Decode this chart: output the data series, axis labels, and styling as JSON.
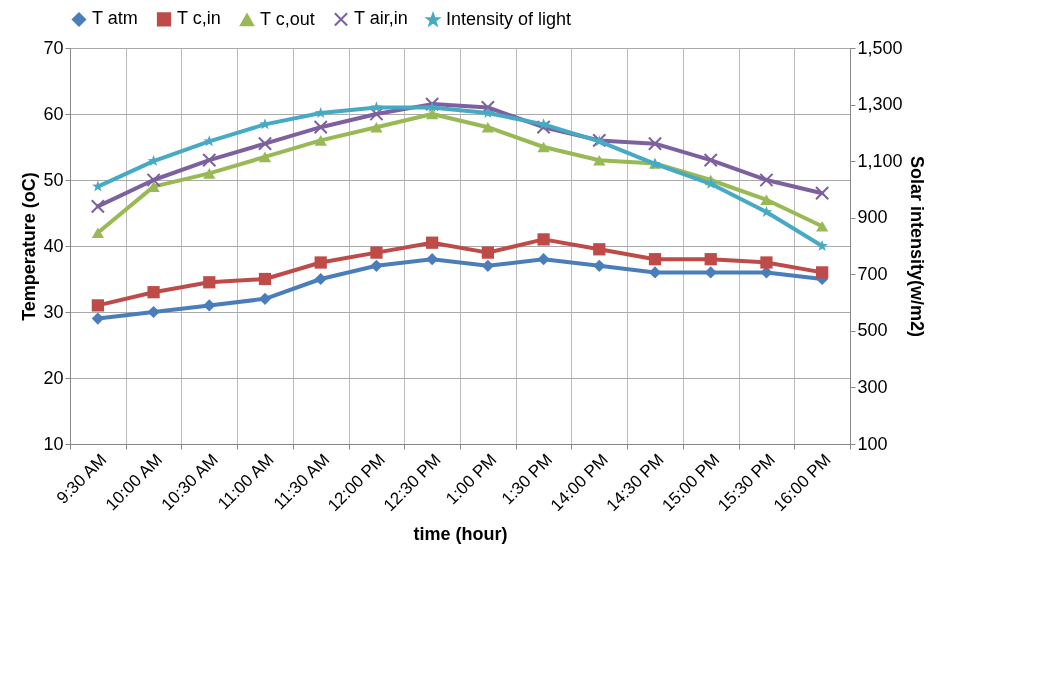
{
  "chart_data": {
    "type": "line",
    "categories": [
      "9:30 AM",
      "10:00 AM",
      "10:30 AM",
      "11:00 AM",
      "11:30 AM",
      "12:00 PM",
      "12:30 PM",
      "1:00 PM",
      "1:30 PM",
      "14:00 PM",
      "14:30 PM",
      "15:00 PM",
      "15:30 PM",
      "16:00 PM"
    ],
    "xlabel": "time (hour)",
    "ylabel": "Temperature (oC)",
    "y2label": "Solar intensity(w/m2)",
    "ylim": [
      10,
      70
    ],
    "yticks": [
      10,
      20,
      30,
      40,
      50,
      60,
      70
    ],
    "y2lim": [
      100,
      1500
    ],
    "y2ticks": [
      100,
      300,
      500,
      700,
      900,
      {
        "value": 1100,
        "label": "1,100"
      },
      {
        "value": 1300,
        "label": "1,300"
      },
      {
        "value": 1500,
        "label": "1,500"
      }
    ],
    "grid": true,
    "legend": "top",
    "series": [
      {
        "name": "T atm",
        "color": "#4a7ebb",
        "marker": "diamond",
        "values": [
          29,
          30,
          31,
          32,
          35,
          37,
          38,
          37,
          38,
          37,
          36,
          36,
          36,
          35
        ]
      },
      {
        "name": "T c,in",
        "color": "#be4b48",
        "marker": "square",
        "values": [
          31,
          33,
          34.5,
          35,
          37.5,
          39,
          40.5,
          39,
          41,
          39.5,
          38,
          38,
          37.5,
          36
        ]
      },
      {
        "name": "T c,out",
        "color": "#98b954",
        "marker": "triangle",
        "values": [
          42,
          49,
          51,
          53.5,
          56,
          58,
          60,
          58,
          55,
          53,
          52.5,
          50,
          47,
          43
        ]
      },
      {
        "name": "T air,in",
        "color": "#7d60a0",
        "marker": "cross",
        "values": [
          46,
          50,
          53,
          55.5,
          58,
          60,
          61.5,
          61,
          58,
          56,
          55.5,
          53,
          50,
          48
        ]
      },
      {
        "name": "Intensity of light",
        "color": "#46aac5",
        "marker": "star",
        "axis": "y2",
        "values": [
          1010,
          1100,
          1170,
          1230,
          1270,
          1290,
          1290,
          1270,
          1230,
          1170,
          1090,
          1020,
          920,
          800
        ]
      }
    ]
  }
}
